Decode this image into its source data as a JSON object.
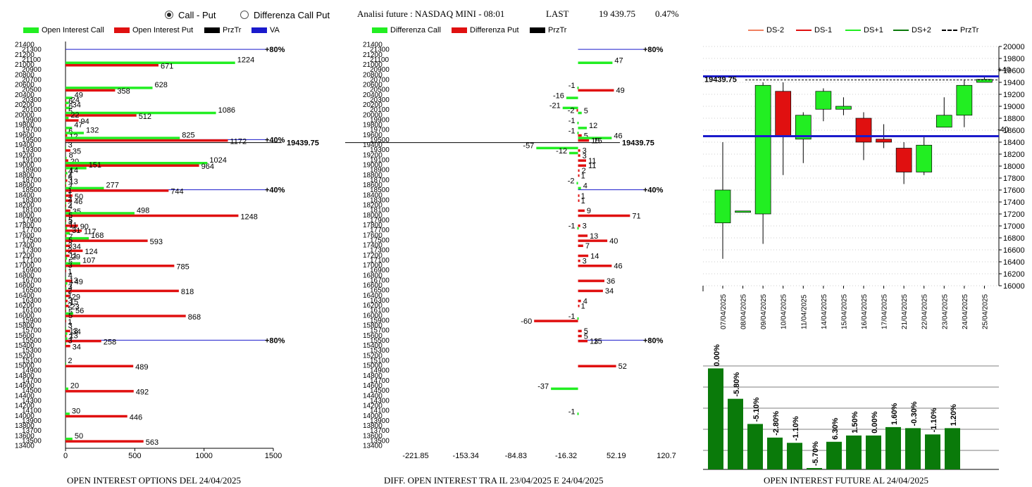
{
  "header": {
    "radio_call_put": "Call - Put",
    "radio_diff": "Differenza Call Put",
    "analisi": "Analisi future : NASDAQ MINI - 08:01",
    "last_label": "LAST",
    "last_value": "19 439.75",
    "last_change": "0.47%"
  },
  "legend1": {
    "oi_call": "Open Interest Call",
    "oi_put": "Open Interest Put",
    "prztr": "PrzTr",
    "va": "VA"
  },
  "legend2": {
    "diff_call": "Differenza Call",
    "diff_put": "Differenza Put",
    "prztr": "PrzTr"
  },
  "legend3": {
    "ds_m2": "DS-2",
    "ds_m1": "DS-1",
    "ds_p1": "DS+1",
    "ds_p2": "DS+2",
    "prztr": "PrzTr"
  },
  "footers": {
    "f1": "OPEN INTEREST OPTIONS DEL 24/04/2025",
    "f2": "DIFF. OPEN INTEREST TRA IL 23/04/2025 E 24/04/2025",
    "f3": "OPEN INTEREST FUTURE AL 24/04/2025"
  },
  "colors": {
    "call": "#22ee22",
    "put": "#e01010",
    "va": "#1a1acc",
    "bar_green": "#0a7a0a",
    "up": "#22ee22",
    "down": "#e01010"
  },
  "chart_data": [
    {
      "type": "bar",
      "orientation": "horizontal",
      "strikes": [
        21400,
        21300,
        21200,
        21100,
        21000,
        20900,
        20800,
        20700,
        20600,
        20500,
        20400,
        20300,
        20200,
        20100,
        20000,
        19900,
        19800,
        19700,
        19600,
        19500,
        19400,
        19300,
        19200,
        19100,
        19000,
        18900,
        18800,
        18700,
        18600,
        18500,
        18400,
        18300,
        18200,
        18100,
        18000,
        17900,
        17800,
        17700,
        17600,
        17500,
        17400,
        17300,
        17200,
        17100,
        17000,
        16900,
        16800,
        16700,
        16600,
        16500,
        16400,
        16300,
        16200,
        16100,
        16000,
        15900,
        15800,
        15700,
        15600,
        15500,
        15400,
        15300,
        15200,
        15100,
        15000,
        14900,
        14800,
        14700,
        14600,
        14500,
        14400,
        14300,
        14200,
        14100,
        14000,
        13900,
        13800,
        13700,
        13600,
        13500,
        13400
      ],
      "bar_strikes": [
        21000,
        20500,
        20300,
        20200,
        20100,
        20000,
        19900,
        19700,
        19600,
        19500,
        19300,
        19100,
        19000,
        18900,
        18800,
        18700,
        18600,
        18500,
        18400,
        18300,
        18200,
        18100,
        18000,
        17900,
        17800,
        17700,
        17600,
        17500,
        17400,
        17300,
        17200,
        17100,
        17000,
        16900,
        16700,
        16600,
        16500,
        16400,
        16300,
        16200,
        16100,
        16000,
        15900,
        15700,
        15600,
        15500,
        15400,
        15000,
        14500,
        14000,
        13500
      ],
      "series": [
        {
          "name": "Open Interest Call",
          "values": [
            1224,
            628,
            49,
            24,
            34,
            1086,
            22,
            47,
            132,
            825,
            3,
            8,
            1024,
            151,
            14,
            4,
            3,
            277,
            1,
            1,
            4,
            2,
            498,
            5,
            5,
            11,
            31,
            168,
            5,
            3,
            2,
            11,
            107,
            3,
            4,
            13,
            7,
            2,
            1,
            3,
            2,
            56,
            5,
            3,
            13,
            13,
            3,
            2,
            20,
            30,
            50
          ]
        },
        {
          "name": "Open Interest Put",
          "values": [
            671,
            358,
            6,
            6,
            5,
            512,
            94,
            6,
            12,
            1172,
            35,
            20,
            964,
            4,
            4,
            13,
            3,
            744,
            50,
            46,
            4,
            35,
            1248,
            3,
            90,
            117,
            7,
            593,
            34,
            124,
            29,
            5,
            785,
            1,
            49,
            3,
            818,
            29,
            15,
            23,
            5,
            868,
            1,
            34,
            7,
            258,
            34,
            489,
            492,
            446,
            563
          ]
        }
      ],
      "prztr": 19439.75,
      "va": [
        {
          "strike": 21300,
          "label": "80%"
        },
        {
          "strike": 19500,
          "label": "40%"
        },
        {
          "strike": 18500,
          "label": "40%"
        },
        {
          "strike": 15500,
          "label": "80%"
        }
      ],
      "xlim": [
        0,
        1500
      ],
      "xticks": [
        "0",
        "500",
        "1000",
        "1500"
      ]
    },
    {
      "type": "bar",
      "orientation": "horizontal",
      "bar_strikes": [
        21000,
        20500,
        20300,
        20100,
        20000,
        19800,
        19700,
        19600,
        19500,
        19300,
        19200,
        19100,
        19000,
        18900,
        18800,
        18600,
        18500,
        18400,
        18300,
        18100,
        18000,
        17800,
        17700,
        17600,
        17500,
        17400,
        17200,
        17100,
        17000,
        16700,
        16500,
        16300,
        16200,
        15900,
        15700,
        15600,
        15500,
        15000,
        14500,
        14000
      ],
      "series": [
        {
          "name": "Differenza Call",
          "values": [
            47,
            -1,
            -16,
            -21,
            5,
            -1,
            12,
            -1,
            46,
            -57,
            -12,
            0,
            0,
            0,
            0,
            -2,
            4,
            0,
            0,
            0,
            0,
            0,
            -1,
            0,
            0,
            0,
            0,
            0,
            0,
            0,
            0,
            0,
            0,
            -1,
            0,
            0,
            0,
            0,
            -37,
            -1
          ]
        },
        {
          "name": "Differenza Put",
          "values": [
            0,
            49,
            0,
            -2,
            0,
            0,
            0,
            5,
            15,
            3,
            3,
            11,
            11,
            2,
            1,
            0,
            0,
            1,
            1,
            9,
            71,
            3,
            0,
            13,
            40,
            7,
            14,
            3,
            46,
            36,
            34,
            4,
            1,
            -60,
            5,
            5,
            13,
            52,
            0,
            0
          ]
        }
      ],
      "extra_labels": [
        {
          "strike": 19500,
          "label": "15"
        },
        {
          "strike": 15500,
          "label": "15"
        }
      ],
      "prztr": 19439.75,
      "va": [
        {
          "strike": 21300,
          "label": "80%"
        },
        {
          "strike": 18500,
          "label": "40%"
        },
        {
          "strike": 15500,
          "label": "80%"
        }
      ],
      "xticks": [
        "-221.85",
        "-153.34",
        "-84.83",
        "-16.32",
        "52.19",
        "120.7"
      ]
    },
    {
      "type": "candlestick",
      "dates": [
        "07/04/2025",
        "08/04/2025",
        "09/04/2025",
        "10/04/2025",
        "11/04/2025",
        "14/04/2025",
        "15/04/2025",
        "16/04/2025",
        "17/04/2025",
        "21/04/2025",
        "22/04/2025",
        "23/04/2025",
        "24/04/2025",
        "25/04/2025"
      ],
      "candles": [
        {
          "open": 17050,
          "close": 17600,
          "high": 18400,
          "low": 16450
        },
        {
          "open": 17250,
          "close": 17250,
          "high": 17250,
          "low": 17250
        },
        {
          "open": 17200,
          "close": 19350,
          "high": 19400,
          "low": 16700
        },
        {
          "open": 19250,
          "close": 18500,
          "high": 19400,
          "low": 17850
        },
        {
          "open": 18450,
          "close": 18850,
          "high": 18900,
          "low": 18050
        },
        {
          "open": 18950,
          "close": 19250,
          "high": 19300,
          "low": 18750
        },
        {
          "open": 18950,
          "close": 19000,
          "high": 19150,
          "low": 18850
        },
        {
          "open": 18800,
          "close": 18400,
          "high": 18900,
          "low": 18100
        },
        {
          "open": 18450,
          "close": 18400,
          "high": 18700,
          "low": 18300
        },
        {
          "open": 18300,
          "close": 17900,
          "high": 18400,
          "low": 17700
        },
        {
          "open": 17900,
          "close": 18350,
          "high": 18500,
          "low": 17850
        },
        {
          "open": 18650,
          "close": 18850,
          "high": 19150,
          "low": 18650
        },
        {
          "open": 18850,
          "close": 19350,
          "high": 19450,
          "low": 18650
        },
        {
          "open": 19400,
          "close": 19450,
          "high": 19500,
          "low": 19400
        }
      ],
      "prztr_label": "19439.75",
      "lines": [
        19500,
        18500
      ],
      "line_labels": [
        "+40",
        "-40"
      ],
      "ylim": [
        16000,
        20000
      ],
      "yticks": [
        "20000",
        "19800",
        "19600",
        "19400",
        "19200",
        "19000",
        "18800",
        "18600",
        "18400",
        "18200",
        "18000",
        "17800",
        "17600",
        "17400",
        "17200",
        "17000",
        "16800",
        "16600",
        "16400",
        "16200",
        "16000"
      ]
    },
    {
      "type": "bar",
      "categories": [
        "07/04/2025",
        "08/04/2025",
        "09/04/2025",
        "10/04/2025",
        "11/04/2025",
        "14/04/2025",
        "15/04/2025",
        "16/04/2025",
        "17/04/2025",
        "21/04/2025",
        "22/04/2025",
        "23/04/2025",
        "24/04/2025"
      ],
      "values": [
        0.0,
        -5.8,
        -5.1,
        -2.8,
        -1.1,
        -5.7,
        6.3,
        1.5,
        0.0,
        1.6,
        -0.3,
        -1.1,
        1.2
      ],
      "labels": [
        "0.00%",
        "-5.80%",
        "-5.10%",
        "-2.80%",
        "-1.10%",
        "-5.70%",
        "6.30%",
        "1.50%",
        "0.00%",
        "1.60%",
        "-0.30%",
        "-1.10%",
        "1.20%"
      ],
      "level": [
        0.95,
        0.66,
        0.42,
        0.29,
        0.24,
        0.0,
        0.25,
        0.31,
        0.31,
        0.39,
        0.38,
        0.32,
        0.38
      ]
    }
  ]
}
